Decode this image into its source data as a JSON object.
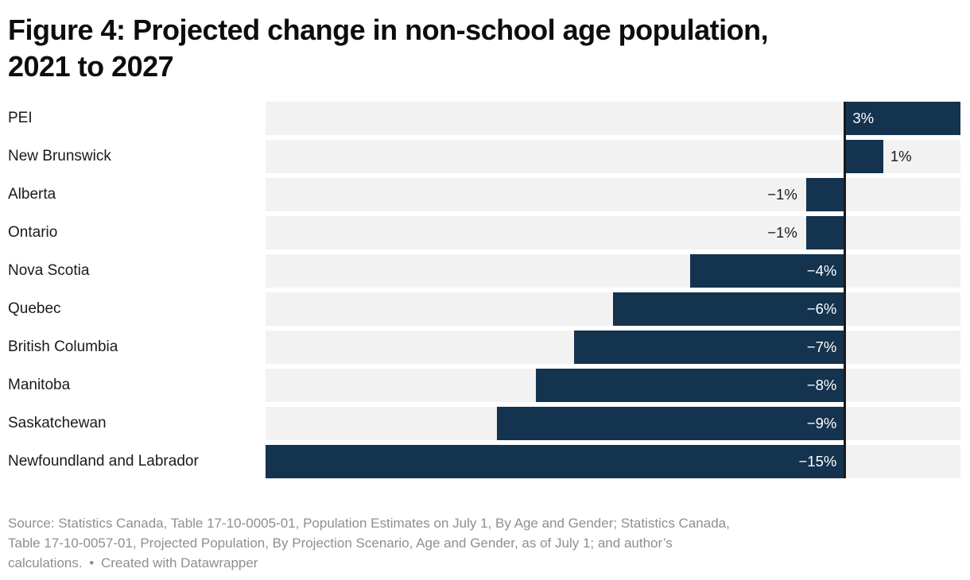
{
  "header": {
    "title_lines": [
      "Figure 4: Projected change in non-school age population,",
      "2021 to 2027"
    ]
  },
  "chart_data": {
    "type": "bar",
    "orientation": "horizontal",
    "title": "Figure 4: Projected change in non-school age population, 2021 to 2027",
    "xlabel": "",
    "ylabel": "",
    "unit": "%",
    "xlim": [
      -15,
      3
    ],
    "grid": false,
    "legend": false,
    "categories": [
      "PEI",
      "New Brunswick",
      "Alberta",
      "Ontario",
      "Nova Scotia",
      "Quebec",
      "British Columbia",
      "Manitoba",
      "Saskatchewan",
      "Newfoundland and Labrador"
    ],
    "values": [
      3,
      1,
      -1,
      -1,
      -4,
      -6,
      -7,
      -8,
      -9,
      -15
    ],
    "value_labels": [
      "3%",
      "1%",
      "−1%",
      "−1%",
      "−4%",
      "−6%",
      "−7%",
      "−8%",
      "−9%",
      "−15%"
    ],
    "label_inside": [
      true,
      false,
      false,
      false,
      true,
      true,
      true,
      true,
      true,
      true
    ],
    "colors": {
      "bar": "#14334e",
      "track": "#f2f2f2",
      "axis_line": "#1a1a1a",
      "label_inside_text": "#ffffff",
      "label_outside_text": "#1a1a1a"
    }
  },
  "footer": {
    "lines": [
      "Source: Statistics Canada, Table 17-10-0005-01, Population Estimates on July 1, By Age and Gender; Statistics Canada,",
      "Table 17-10-0057-01, Projected Population, By Projection Scenario, Age and Gender, as of July 1; and author’s",
      "calculations."
    ],
    "separator": "•",
    "byline": "Created with Datawrapper"
  }
}
